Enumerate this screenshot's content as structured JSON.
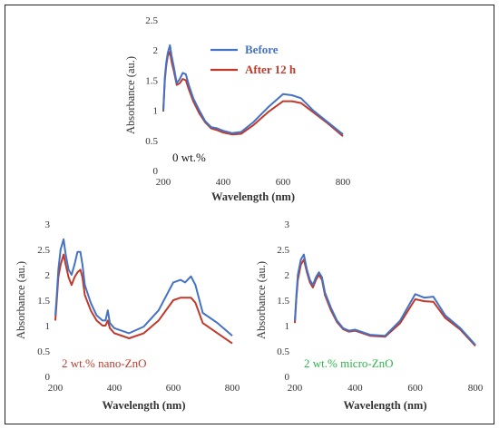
{
  "chart_data": [
    {
      "type": "line",
      "annotation": "0 wt.%",
      "annotation_color": "#111111",
      "xlabel": "Wavelength (nm)",
      "ylabel": "Absorbance (au.)",
      "xlim": [
        200,
        800
      ],
      "ylim": [
        0,
        2.5
      ],
      "xticks": [
        "200",
        "400",
        "600",
        "800"
      ],
      "yticks": [
        "0",
        "0.5",
        "1",
        "1.5",
        "2",
        "2.5"
      ],
      "legend": "top-right",
      "series": [
        {
          "name": "Before",
          "color": "#4472c4",
          "x": [
            200,
            205,
            210,
            215,
            222,
            228,
            235,
            245,
            255,
            265,
            275,
            285,
            300,
            320,
            340,
            360,
            380,
            400,
            430,
            460,
            500,
            550,
            600,
            630,
            660,
            700,
            750,
            800
          ],
          "y": [
            1.0,
            1.55,
            1.8,
            1.95,
            2.08,
            1.9,
            1.72,
            1.45,
            1.52,
            1.62,
            1.6,
            1.42,
            1.2,
            1.0,
            0.82,
            0.72,
            0.7,
            0.66,
            0.62,
            0.64,
            0.8,
            1.05,
            1.27,
            1.25,
            1.2,
            1.0,
            0.8,
            0.6
          ]
        },
        {
          "name": "After 12 h",
          "color": "#c0392b",
          "x": [
            200,
            205,
            210,
            215,
            222,
            228,
            235,
            245,
            255,
            265,
            275,
            285,
            300,
            320,
            340,
            360,
            380,
            400,
            430,
            460,
            500,
            550,
            600,
            630,
            660,
            700,
            750,
            800
          ],
          "y": [
            0.98,
            1.5,
            1.75,
            1.9,
            1.97,
            1.8,
            1.65,
            1.42,
            1.45,
            1.52,
            1.5,
            1.35,
            1.15,
            0.95,
            0.8,
            0.7,
            0.67,
            0.63,
            0.6,
            0.61,
            0.75,
            0.97,
            1.15,
            1.15,
            1.12,
            0.97,
            0.78,
            0.57
          ]
        }
      ]
    },
    {
      "type": "line",
      "annotation": "2 wt.% nano-ZnO",
      "annotation_color": "#c0392b",
      "xlabel": "Wavelength (nm)",
      "ylabel": "Absorbance (au.)",
      "xlim": [
        200,
        800
      ],
      "ylim": [
        0,
        3
      ],
      "xticks": [
        "200",
        "400",
        "600",
        "800"
      ],
      "yticks": [
        "0",
        "0.5",
        "1",
        "1.5",
        "2",
        "2.5",
        "3"
      ],
      "series": [
        {
          "name": "Before",
          "color": "#4472c4",
          "x": [
            200,
            205,
            210,
            218,
            228,
            235,
            245,
            255,
            265,
            275,
            285,
            292,
            300,
            320,
            340,
            360,
            370,
            378,
            385,
            400,
            450,
            500,
            550,
            600,
            625,
            640,
            660,
            675,
            700,
            750,
            800
          ],
          "y": [
            1.2,
            1.6,
            2.1,
            2.5,
            2.7,
            2.4,
            2.1,
            2.0,
            2.2,
            2.45,
            2.45,
            2.2,
            1.8,
            1.45,
            1.2,
            1.1,
            1.1,
            1.3,
            1.05,
            0.95,
            0.85,
            0.98,
            1.3,
            1.85,
            1.9,
            1.85,
            1.97,
            1.8,
            1.25,
            1.05,
            0.8
          ]
        },
        {
          "name": "After 12 h",
          "color": "#c0392b",
          "x": [
            200,
            205,
            210,
            218,
            228,
            235,
            245,
            255,
            265,
            275,
            285,
            292,
            300,
            320,
            340,
            360,
            370,
            378,
            385,
            400,
            450,
            500,
            550,
            600,
            625,
            640,
            660,
            675,
            700,
            750,
            800
          ],
          "y": [
            1.1,
            1.5,
            1.95,
            2.2,
            2.4,
            2.2,
            1.95,
            1.8,
            1.95,
            2.05,
            2.1,
            1.95,
            1.6,
            1.3,
            1.1,
            1.0,
            1.0,
            1.1,
            0.95,
            0.85,
            0.75,
            0.85,
            1.1,
            1.5,
            1.55,
            1.55,
            1.55,
            1.45,
            1.05,
            0.85,
            0.65
          ]
        }
      ]
    },
    {
      "type": "line",
      "annotation": "2 wt.% micro-ZnO",
      "annotation_color": "#2bb54a",
      "xlabel": "Wavelength (nm)",
      "ylabel": "Absorbance (au.)",
      "xlim": [
        200,
        800
      ],
      "ylim": [
        0,
        3
      ],
      "xticks": [
        "200",
        "400",
        "600",
        "800"
      ],
      "yticks": [
        "0",
        "0.5",
        "1",
        "1.5",
        "2",
        "2.5",
        "3"
      ],
      "series": [
        {
          "name": "Before",
          "color": "#4472c4",
          "x": [
            200,
            205,
            210,
            220,
            230,
            240,
            250,
            260,
            270,
            280,
            290,
            300,
            320,
            340,
            360,
            380,
            400,
            450,
            500,
            550,
            600,
            630,
            660,
            700,
            750,
            800
          ],
          "y": [
            1.1,
            1.6,
            2.0,
            2.3,
            2.4,
            2.1,
            1.9,
            1.8,
            1.95,
            2.05,
            1.95,
            1.65,
            1.35,
            1.1,
            0.95,
            0.9,
            0.92,
            0.82,
            0.8,
            1.1,
            1.62,
            1.55,
            1.57,
            1.2,
            0.95,
            0.62
          ]
        },
        {
          "name": "After 12 h",
          "color": "#c0392b",
          "x": [
            200,
            205,
            210,
            220,
            230,
            240,
            250,
            260,
            270,
            280,
            290,
            300,
            320,
            340,
            360,
            380,
            400,
            450,
            500,
            550,
            600,
            630,
            660,
            700,
            750,
            800
          ],
          "y": [
            1.05,
            1.55,
            1.9,
            2.2,
            2.3,
            2.05,
            1.85,
            1.75,
            1.9,
            2.0,
            1.9,
            1.6,
            1.3,
            1.07,
            0.93,
            0.88,
            0.9,
            0.8,
            0.78,
            1.05,
            1.52,
            1.48,
            1.47,
            1.15,
            0.92,
            0.6
          ]
        }
      ]
    }
  ]
}
